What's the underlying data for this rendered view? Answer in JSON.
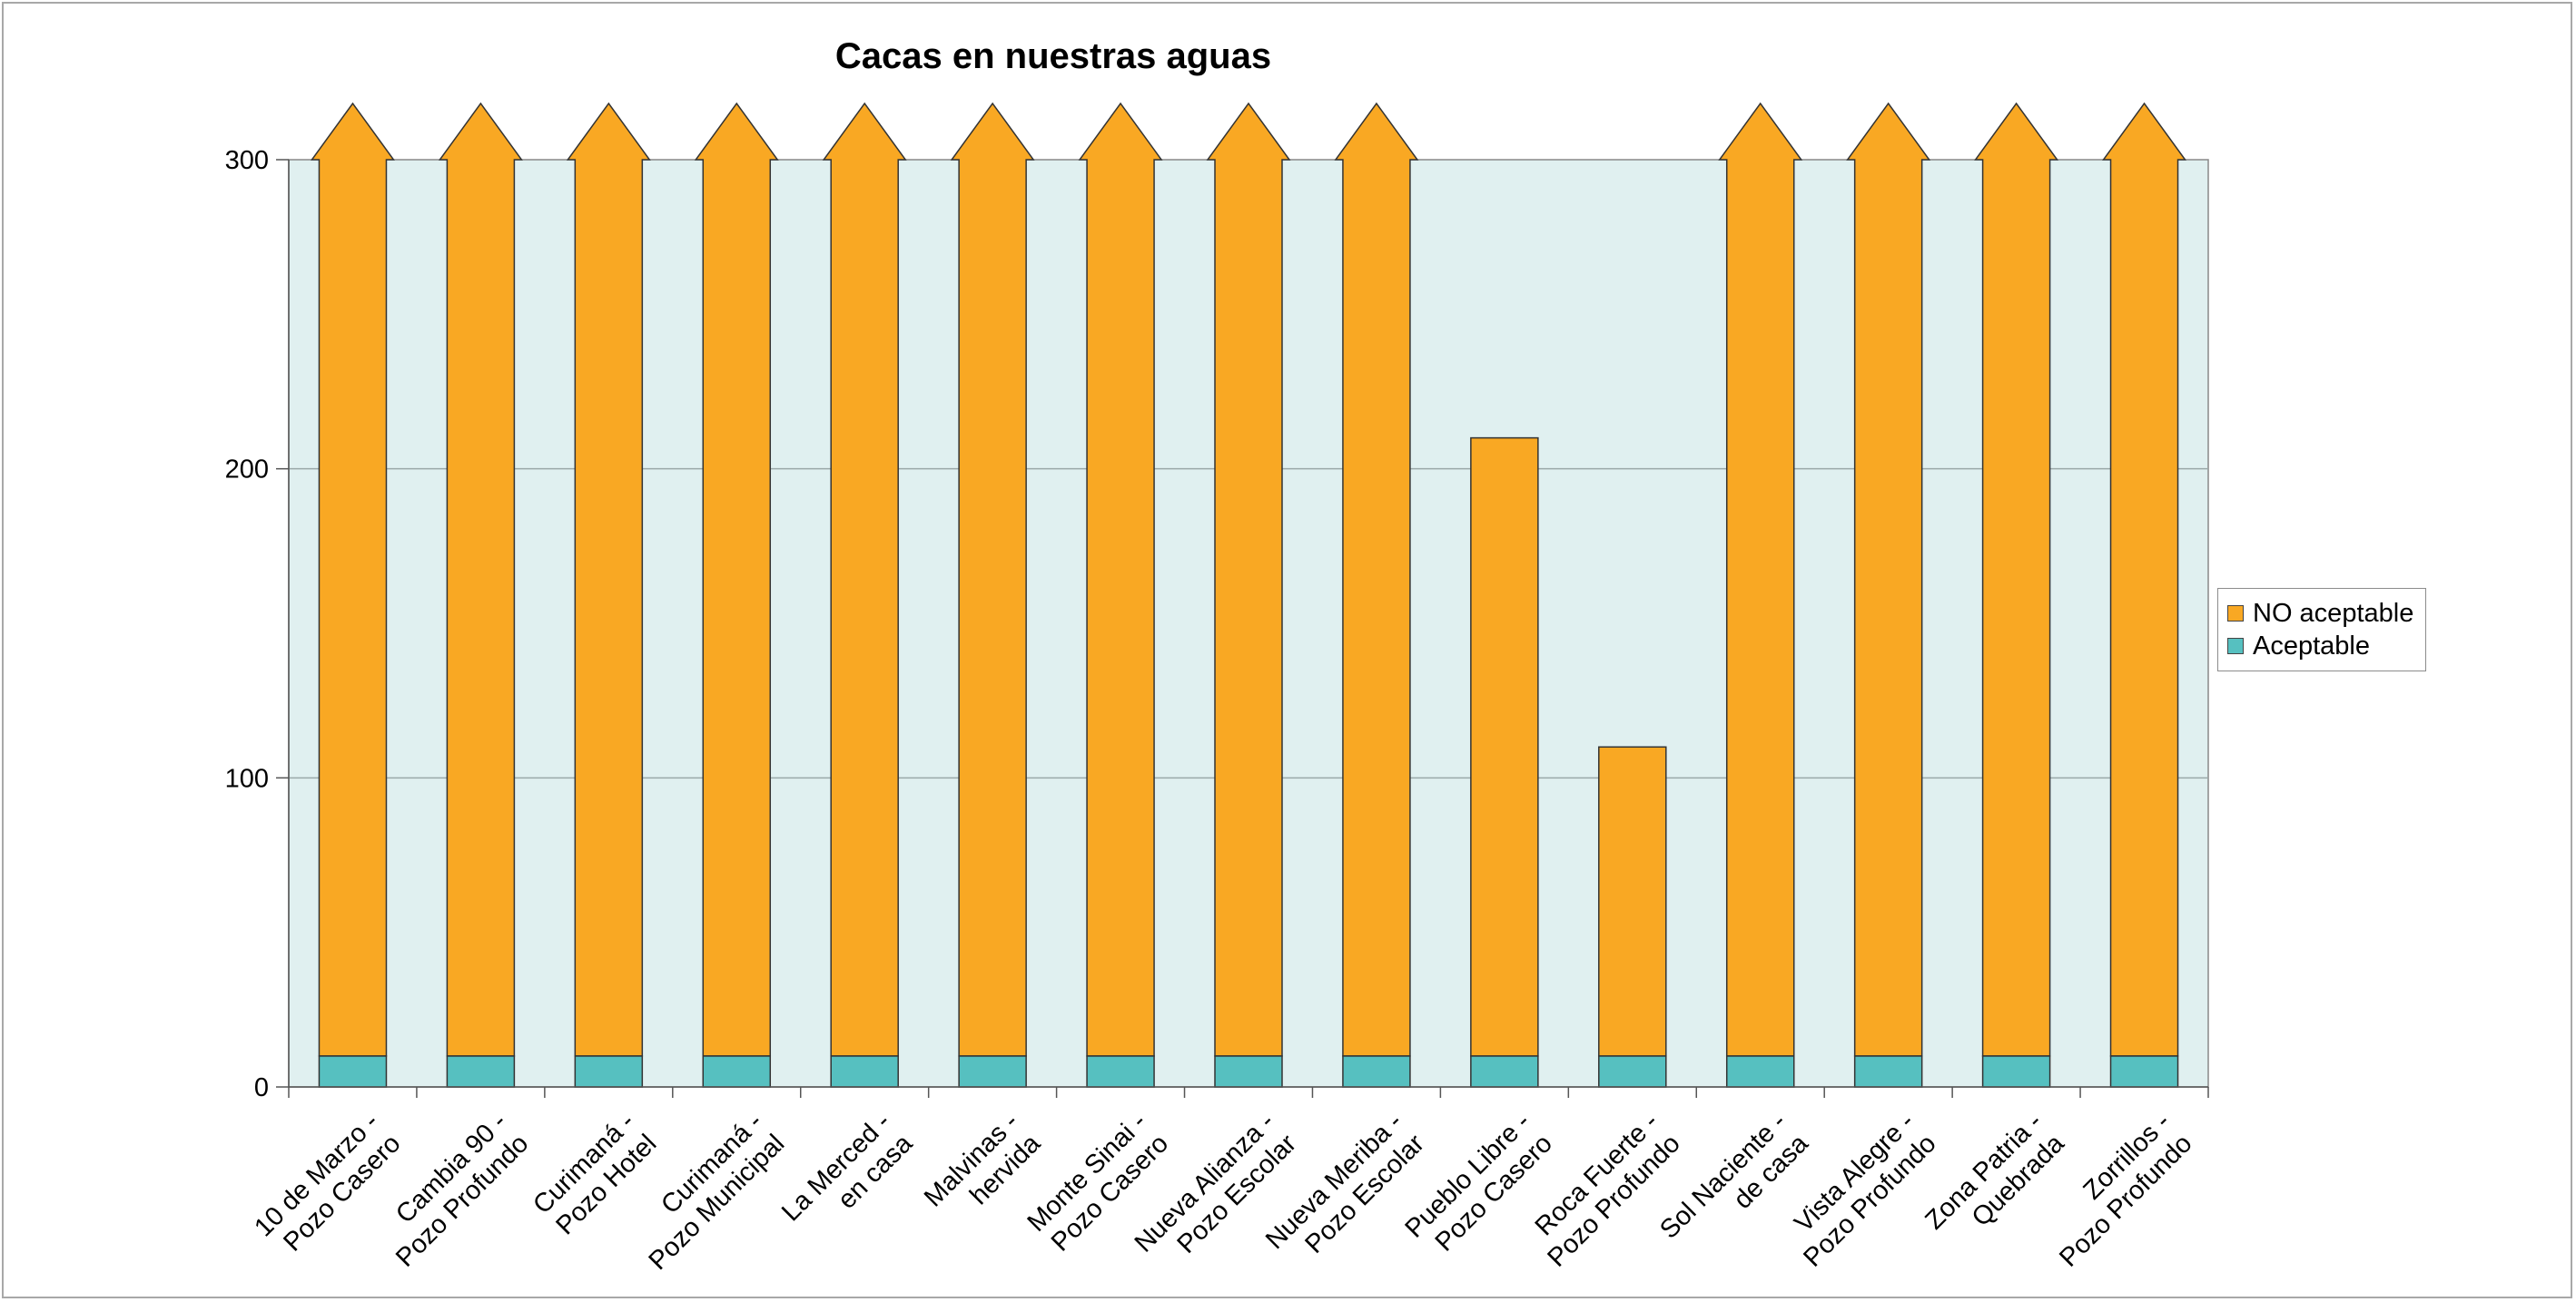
{
  "chart_data": {
    "type": "bar",
    "stacked": true,
    "title": "Cacas en nuestras aguas",
    "xlabel": "",
    "ylabel": "",
    "ylim": [
      0,
      300
    ],
    "yticks": [
      "0",
      "100",
      "200",
      "300"
    ],
    "grid": true,
    "legend_position": "right",
    "categories": [
      [
        "10 de Marzo -",
        "Pozo Casero"
      ],
      [
        "Cambia 90 -",
        "Pozo Profundo"
      ],
      [
        "Curimaná -",
        "Pozo Hotel"
      ],
      [
        "Curimaná -",
        "Pozo Municipal"
      ],
      [
        "La Merced -",
        "en casa"
      ],
      [
        "Malvinas -",
        "hervida"
      ],
      [
        "Monte Sinai -",
        "Pozo Casero"
      ],
      [
        "Nueva Alianza -",
        "Pozo Escolar"
      ],
      [
        "Nueva Meriba -",
        "Pozo Escolar"
      ],
      [
        "Pueblo Libre -",
        "Pozo Casero"
      ],
      [
        "Roca Fuerte -",
        "Pozo Profundo"
      ],
      [
        "Sol Naciente -",
        "de casa"
      ],
      [
        "Vista Alegre -",
        "Pozo Profundo"
      ],
      [
        "Zona Patria -",
        "Quebrada"
      ],
      [
        "Zorrillos -",
        "Pozo Profundo"
      ]
    ],
    "series": [
      {
        "name": "Aceptable",
        "color": "#56c0c0",
        "values": [
          10,
          10,
          10,
          10,
          10,
          10,
          10,
          10,
          10,
          10,
          10,
          10,
          10,
          10,
          10
        ]
      },
      {
        "name": "NO aceptable",
        "color": "#f9a823",
        "values": [
          290,
          290,
          290,
          290,
          290,
          290,
          290,
          290,
          290,
          200,
          100,
          290,
          290,
          290,
          290
        ]
      }
    ],
    "overflow": [
      true,
      true,
      true,
      true,
      true,
      true,
      true,
      true,
      true,
      false,
      false,
      true,
      true,
      true,
      true
    ],
    "plot_background": "#e0f0f0"
  }
}
